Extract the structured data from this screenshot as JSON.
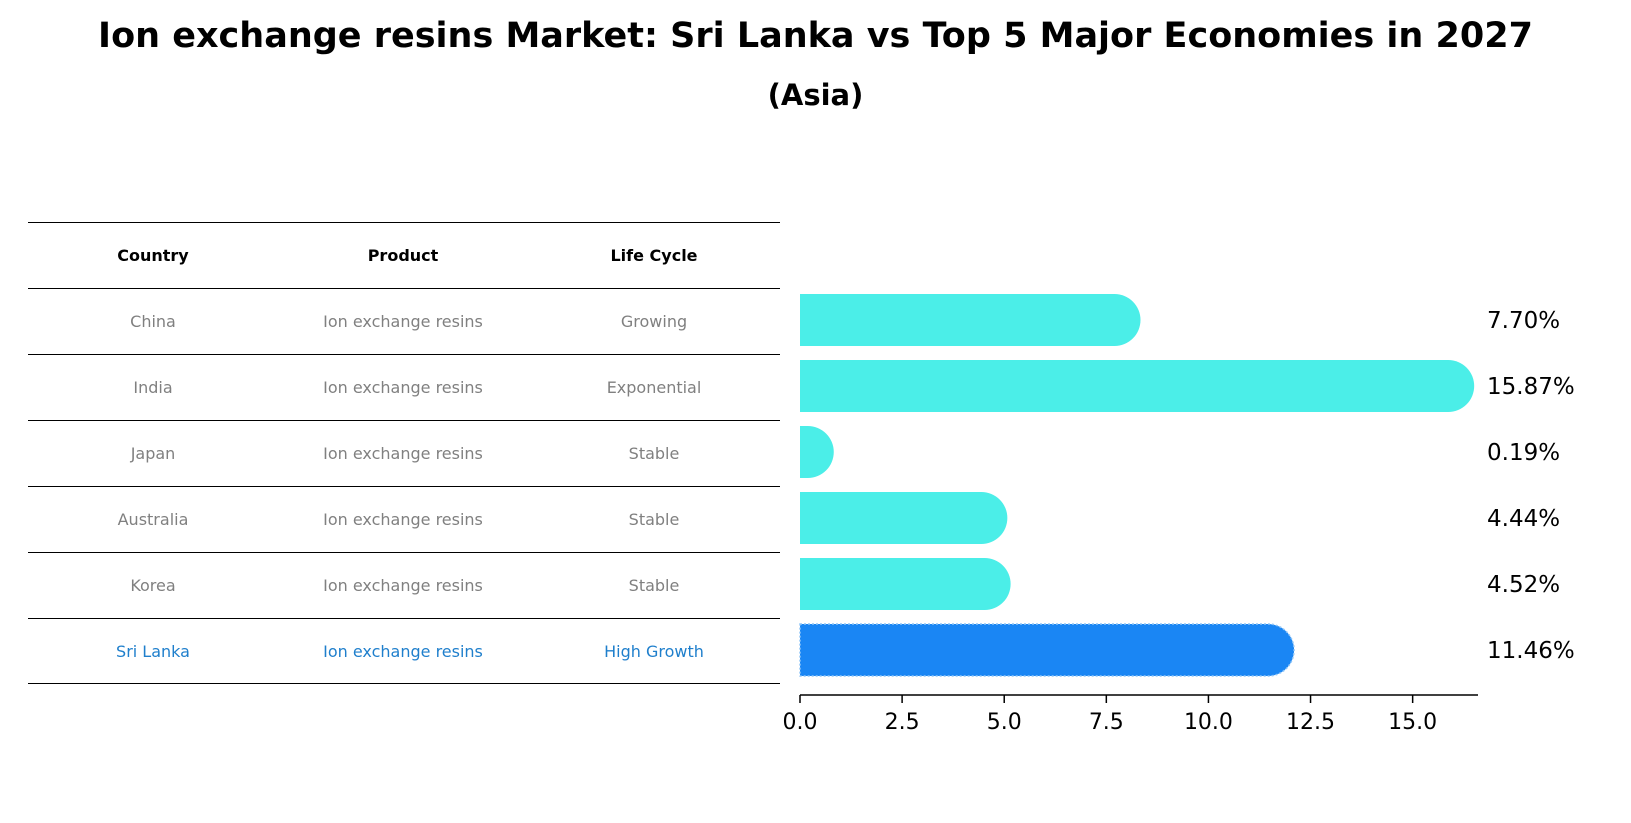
{
  "title": "Ion exchange resins Market: Sri Lanka vs Top 5 Major Economies in 2027",
  "subtitle": "(Asia)",
  "table": {
    "headers": [
      "Country",
      "Product",
      "Life Cycle"
    ],
    "rows": [
      {
        "country": "China",
        "product": "Ion exchange resins",
        "life_cycle": "Growing"
      },
      {
        "country": "India",
        "product": "Ion exchange resins",
        "life_cycle": "Exponential"
      },
      {
        "country": "Japan",
        "product": "Ion exchange resins",
        "life_cycle": "Stable"
      },
      {
        "country": "Australia",
        "product": "Ion exchange resins",
        "life_cycle": "Stable"
      },
      {
        "country": "Korea",
        "product": "Ion exchange resins",
        "life_cycle": "Stable"
      },
      {
        "country": "Sri Lanka",
        "product": "Ion exchange resins",
        "life_cycle": "High Growth"
      }
    ]
  },
  "colors": {
    "bar": "#4beee8",
    "highlight_bar": "#1a86f4",
    "highlight_text": "#1f7fcc",
    "row_text": "#808080"
  },
  "chart_data": {
    "type": "bar",
    "orientation": "horizontal",
    "categories": [
      "China",
      "India",
      "Japan",
      "Australia",
      "Korea",
      "Sri Lanka"
    ],
    "values": [
      7.7,
      15.87,
      0.19,
      4.44,
      4.52,
      11.46
    ],
    "value_labels": [
      "7.70%",
      "15.87%",
      "0.19%",
      "4.44%",
      "4.52%",
      "11.46%"
    ],
    "highlight": "Sri Lanka",
    "xlim": [
      0,
      16.6
    ],
    "xticks": [
      0.0,
      2.5,
      5.0,
      7.5,
      10.0,
      12.5,
      15.0
    ],
    "xtick_labels": [
      "0.0",
      "2.5",
      "5.0",
      "7.5",
      "10.0",
      "12.5",
      "15.0"
    ],
    "xlabel": "",
    "ylabel": "",
    "grid": false
  }
}
